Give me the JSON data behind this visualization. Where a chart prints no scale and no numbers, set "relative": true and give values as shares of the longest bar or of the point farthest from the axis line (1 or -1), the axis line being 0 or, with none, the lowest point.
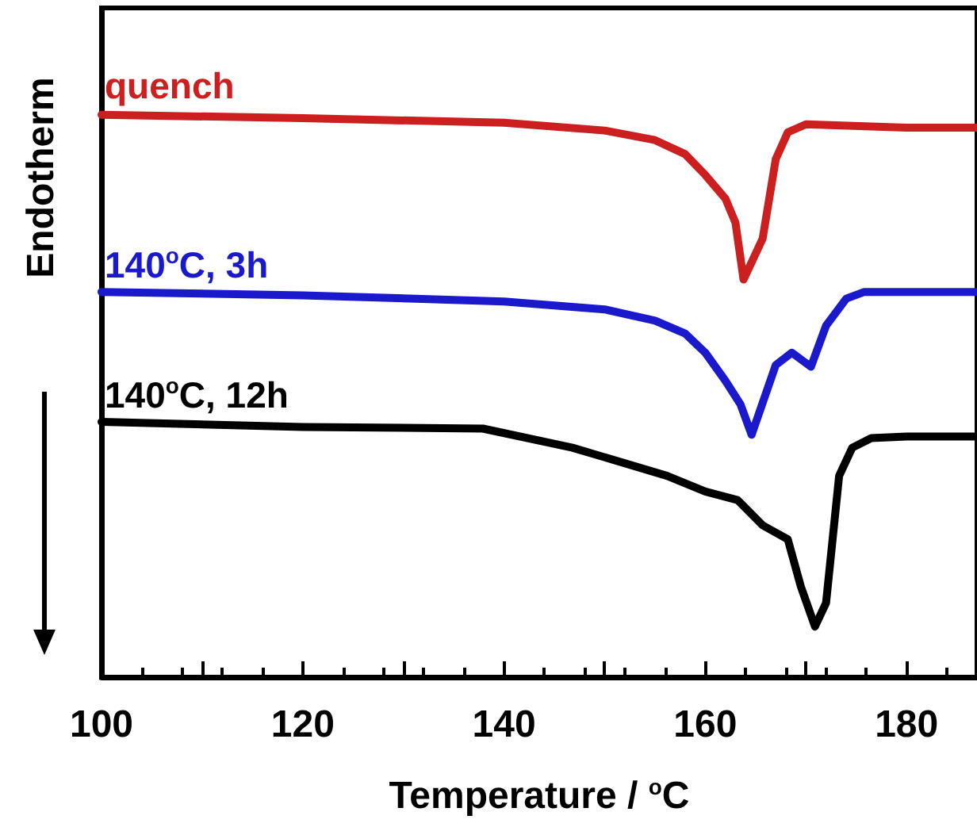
{
  "chart_data": {
    "type": "line",
    "relative": true,
    "xlabel": "Temperature / $^{o}$C",
    "ylabel": "Endotherm",
    "xlim": [
      100,
      187
    ],
    "xticks": [
      100,
      {
        "value": 110,
        "label": null
      },
      120,
      {
        "value": 130,
        "label": null
      },
      140,
      {
        "value": 150,
        "label": null
      },
      160,
      {
        "value": 170,
        "label": null
      },
      180
    ],
    "grid": false,
    "legend": false,
    "marker": "none",
    "line_style": "solid",
    "series": [
      {
        "name": "quench",
        "color": "#cc1f1f",
        "x": [
          100,
          120,
          140,
          150,
          155,
          158,
          160,
          162,
          163,
          163.8,
          165.7,
          167,
          168.2,
          170,
          180,
          187
        ],
        "values": [
          1.0,
          0.994,
          0.986,
          0.972,
          0.955,
          0.93,
          0.893,
          0.851,
          0.808,
          0.707,
          0.78,
          0.921,
          0.969,
          0.983,
          0.977,
          0.977
        ]
      },
      {
        "name": "140$^{o}$C, 3h",
        "color": "#1a1acc",
        "x": [
          100,
          120,
          140,
          150,
          155,
          158,
          160,
          162,
          163.5,
          164.6,
          167,
          168.6,
          170.5,
          172,
          174,
          175.8,
          180,
          187
        ],
        "values": [
          0.685,
          0.679,
          0.668,
          0.654,
          0.634,
          0.611,
          0.577,
          0.527,
          0.485,
          0.431,
          0.555,
          0.577,
          0.552,
          0.625,
          0.673,
          0.685,
          0.685,
          0.685
        ]
      },
      {
        "name": "140$^{o}$C, 12h",
        "color": "#000000",
        "x": [
          100,
          120,
          137.9,
          146.8,
          156.2,
          160,
          163.2,
          165.7,
          168.2,
          169.5,
          170.9,
          172,
          173.3,
          174.6,
          176.5,
          180,
          187
        ],
        "values": [
          0.454,
          0.445,
          0.442,
          0.408,
          0.358,
          0.33,
          0.315,
          0.27,
          0.245,
          0.161,
          0.09,
          0.132,
          0.358,
          0.408,
          0.425,
          0.428,
          0.428
        ]
      }
    ]
  }
}
